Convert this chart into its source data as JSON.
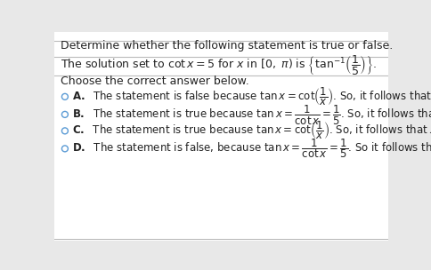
{
  "bg_color": "#e8e8e8",
  "panel_color": "#ffffff",
  "title_line": "Determine whether the following statement is true or false.",
  "choose_line": "Choose the correct answer below.",
  "font_size": 8.5,
  "text_color": "#222222",
  "circle_color": "#5b9bd5",
  "line_color": "#bbbbbb"
}
